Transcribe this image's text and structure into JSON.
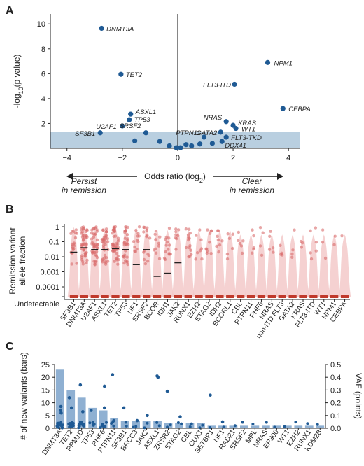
{
  "chart_data": [
    {
      "panel": "A",
      "type": "scatter",
      "xlabel": "Odds ratio (log",
      "xlabel_sub": "2",
      "xlabel_end": ")",
      "ylabel": "-log",
      "ylabel_sub": "10",
      "ylabel_end": "(p value)",
      "xlim": [
        -4.6,
        4.4
      ],
      "ylim": [
        0,
        10.8
      ],
      "xticks": [
        -4,
        -2,
        0,
        2,
        4
      ],
      "yticks": [
        2,
        4,
        6,
        8,
        10
      ],
      "significance_band": [
        0,
        1.3
      ],
      "colors": {
        "point": "#1f5a94",
        "band": "#b9cfe0"
      },
      "left_arrow_label": [
        "Persist",
        "in remission"
      ],
      "right_arrow_label": [
        "Clear",
        "in remission"
      ],
      "points": [
        {
          "gene": "DNMT3A",
          "x": -2.75,
          "y": 9.65
        },
        {
          "gene": "TET2",
          "x": -2.05,
          "y": 5.95
        },
        {
          "gene": "ASXL1",
          "x": -1.7,
          "y": 2.75
        },
        {
          "gene": "TP53",
          "x": -1.75,
          "y": 2.3
        },
        {
          "gene": "U2AF1",
          "x": -2.0,
          "y": 1.8
        },
        {
          "gene": "SRSF2",
          "x": -1.15,
          "y": 1.25
        },
        {
          "gene": "SF3B1",
          "x": -2.8,
          "y": 1.25
        },
        {
          "gene": "NPM1",
          "x": 3.25,
          "y": 6.9
        },
        {
          "gene": "FLT3-ITD",
          "x": 2.05,
          "y": 5.15
        },
        {
          "gene": "CEBPA",
          "x": 3.8,
          "y": 3.2
        },
        {
          "gene": "NRAS",
          "x": 1.75,
          "y": 2.15
        },
        {
          "gene": "KRAS",
          "x": 2.0,
          "y": 1.85
        },
        {
          "gene": "WT1",
          "x": 2.1,
          "y": 1.6
        },
        {
          "gene": "GATA2",
          "x": 1.55,
          "y": 1.3
        },
        {
          "gene": "PTPN11",
          "x": 0.95,
          "y": 0.9
        },
        {
          "gene": "FLT3-TKD",
          "x": 1.75,
          "y": 0.9
        },
        {
          "gene": "DDX41",
          "x": 1.6,
          "y": 0.55
        },
        {
          "gene": "",
          "x": -1.55,
          "y": 0.6
        },
        {
          "gene": "",
          "x": -0.65,
          "y": 0.55
        },
        {
          "gene": "",
          "x": -0.3,
          "y": 0.2
        },
        {
          "gene": "",
          "x": -0.05,
          "y": 0.05
        },
        {
          "gene": "",
          "x": 0.1,
          "y": 0.05
        },
        {
          "gene": "",
          "x": 0.3,
          "y": 0.3
        },
        {
          "gene": "",
          "x": 0.5,
          "y": 0.2
        },
        {
          "gene": "",
          "x": 0.8,
          "y": 0.35
        },
        {
          "gene": "",
          "x": 1.25,
          "y": 0.4
        }
      ]
    },
    {
      "panel": "B",
      "type": "violin",
      "ylabel": [
        "Remission variant",
        "allele fraction"
      ],
      "yscale": "log",
      "yticks": [
        "1",
        "0.1",
        "0.01",
        "0.001",
        "0.0001",
        "Undetectable"
      ],
      "colors": {
        "violin": "#f2c6c6",
        "point": "#d96b6b",
        "undetectable": "#c0392b",
        "median": "#222222"
      },
      "categories": [
        "SF3B1",
        "DNMT3A",
        "U2AF1",
        "ASXL1",
        "TET2",
        "TP53",
        "NF1",
        "SRSF2",
        "BCOR",
        "IDH1",
        "JAK2",
        "RUNX1",
        "EZH2",
        "STAG2",
        "IDH2",
        "BCORL1",
        "CBL",
        "PTPN11",
        "PHF6",
        "NRAS",
        "non-ITD FLT3",
        "GATA2",
        "KRAS",
        "FLT3-ITD",
        "WT1",
        "NPM1",
        "CEBPA"
      ],
      "medians": [
        0.02,
        0.04,
        0.03,
        0.03,
        0.035,
        0.03,
        0.003,
        0.03,
        0.0005,
        0.0008,
        0.004,
        null,
        null,
        null,
        null,
        null,
        null,
        null,
        null,
        null,
        null,
        null,
        null,
        null,
        null,
        null,
        null
      ]
    },
    {
      "panel": "C",
      "type": "bar+scatter",
      "ylabel_left": "# of new variants (bars)",
      "ylabel_right": "VAF (points)",
      "ylim_left": [
        0,
        25
      ],
      "ylim_right": [
        0,
        0.5
      ],
      "yticks_left": [
        0,
        5,
        10,
        15,
        20,
        25
      ],
      "yticks_right": [
        "0.0",
        "0.1",
        "0.2",
        "0.3",
        "0.4",
        "0.5"
      ],
      "colors": {
        "bar": "#8fb0d2",
        "point": "#1f5a94"
      },
      "categories": [
        "DNMT3A",
        "TET2",
        "PPM1D",
        "TP53",
        "PHF6",
        "PTPN11",
        "SF3B1",
        "BRCC3",
        "JAK2",
        "ASXL1",
        "ZRSR2",
        "STAG2",
        "CBL",
        "CUX1",
        "SETBP1",
        "NF1",
        "RAD21",
        "SRSF2",
        "MPL",
        "NRAS",
        "EP300",
        "WT1",
        "EZH2",
        "RUNX1",
        "KDM2B"
      ],
      "values": [
        23,
        15,
        12,
        8,
        7,
        4,
        3,
        3,
        3,
        3,
        2,
        2,
        2,
        2,
        1,
        1,
        1,
        1,
        1,
        1,
        1,
        1,
        1,
        1,
        1
      ],
      "vaf_highlights": [
        {
          "gene": "DNMT3A",
          "vaf": [
            0.17,
            0.14,
            0.12
          ]
        },
        {
          "gene": "TET2",
          "vaf": [
            0.24,
            0.16
          ]
        },
        {
          "gene": "PPM1D",
          "vaf": [
            0.34,
            0.13
          ]
        },
        {
          "gene": "TP53",
          "vaf": [
            0.14
          ]
        },
        {
          "gene": "PHF6",
          "vaf": [
            0.33,
            0.16
          ]
        },
        {
          "gene": "PTPN11",
          "vaf": [
            0.42,
            0.06
          ]
        },
        {
          "gene": "SF3B1",
          "vaf": [
            0.16
          ]
        },
        {
          "gene": "BRCC3",
          "vaf": [
            0.06
          ]
        },
        {
          "gene": "JAK2",
          "vaf": [
            0.1
          ]
        },
        {
          "gene": "ASXL1",
          "vaf": [
            0.41,
            0.4
          ]
        },
        {
          "gene": "ZRSR2",
          "vaf": [
            0.29
          ]
        },
        {
          "gene": "STAG2",
          "vaf": [
            0.09
          ]
        },
        {
          "gene": "SETBP1",
          "vaf": [
            0.26
          ]
        },
        {
          "gene": "NF1",
          "vaf": [
            0.05
          ]
        }
      ]
    }
  ]
}
